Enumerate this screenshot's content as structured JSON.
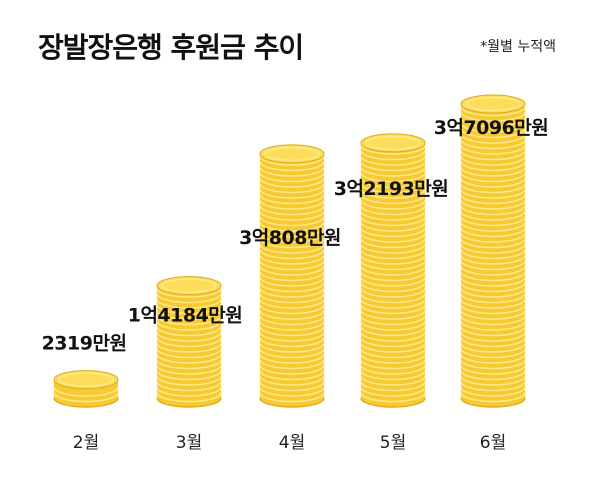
{
  "title": "장발장은행 후원금 추이",
  "note": "*월별 누적액",
  "colors": {
    "coin_fill": "#F7CA34",
    "coin_top": "#FBDD5B",
    "coin_ridge": "#FDE98A",
    "coin_shadow": "#E2A81B",
    "text": "#111111"
  },
  "chart_data": {
    "type": "bar",
    "style": "coin-stacks",
    "categories": [
      "2월",
      "3월",
      "4월",
      "5월",
      "6월"
    ],
    "values": [
      2319,
      14184,
      30808,
      32193,
      37096
    ],
    "value_unit": "만원",
    "data_labels": [
      "2319만원",
      "1억4184만원",
      "3억808만원",
      "3억2193만원",
      "3억7096만원"
    ],
    "title": "장발장은행 후원금 추이",
    "note": "*월별 누적액",
    "xlabel": "",
    "ylabel": ""
  }
}
